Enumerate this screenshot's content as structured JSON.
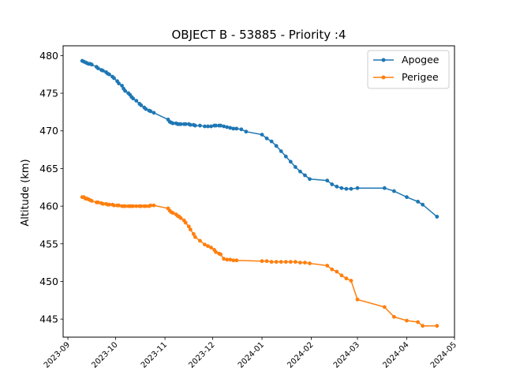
{
  "chart_data": {
    "type": "line",
    "title": "OBJECT B - 53885 - Priority :4",
    "xlabel": "",
    "ylabel": "Altitude (km)",
    "xlim": [
      "2023-08-29",
      "2024-05-01"
    ],
    "ylim": [
      442.6,
      481.3
    ],
    "x_ticks": [
      "2023-09-01",
      "2023-10-01",
      "2023-11-01",
      "2023-12-01",
      "2024-01-01",
      "2024-02-01",
      "2024-03-01",
      "2024-04-01",
      "2024-05-01"
    ],
    "x_tick_labels": [
      "2023-09",
      "2023-10",
      "2023-11",
      "2023-12",
      "2024-01",
      "2024-02",
      "2024-03",
      "2024-04",
      "2024-05"
    ],
    "y_ticks": [
      445,
      450,
      455,
      460,
      465,
      470,
      475,
      480
    ],
    "y_tick_labels": [
      "445",
      "450",
      "455",
      "460",
      "465",
      "470",
      "475",
      "480"
    ],
    "legend": {
      "placement": "top-right",
      "entries": [
        "Apogee",
        "Perigee"
      ]
    },
    "grid": false,
    "series": [
      {
        "name": "Apogee",
        "color": "#1f77b4",
        "x": [
          "2023-09-10",
          "2023-09-11",
          "2023-09-12",
          "2023-09-13",
          "2023-09-14",
          "2023-09-15",
          "2023-09-16",
          "2023-09-19",
          "2023-09-20",
          "2023-09-22",
          "2023-09-23",
          "2023-09-25",
          "2023-09-26",
          "2023-09-27",
          "2023-09-29",
          "2023-09-30",
          "2023-10-02",
          "2023-10-03",
          "2023-10-05",
          "2023-10-06",
          "2023-10-07",
          "2023-10-09",
          "2023-10-10",
          "2023-10-11",
          "2023-10-12",
          "2023-10-14",
          "2023-10-16",
          "2023-10-17",
          "2023-10-19",
          "2023-10-20",
          "2023-10-22",
          "2023-10-23",
          "2023-10-25",
          "2023-11-03",
          "2023-11-04",
          "2023-11-05",
          "2023-11-06",
          "2023-11-08",
          "2023-11-09",
          "2023-11-10",
          "2023-11-11",
          "2023-11-13",
          "2023-11-14",
          "2023-11-16",
          "2023-11-17",
          "2023-11-19",
          "2023-11-20",
          "2023-11-23",
          "2023-11-26",
          "2023-11-28",
          "2023-11-30",
          "2023-12-02",
          "2023-12-03",
          "2023-12-05",
          "2023-12-06",
          "2023-12-08",
          "2023-12-10",
          "2023-12-12",
          "2023-12-14",
          "2023-12-16",
          "2023-12-19",
          "2023-12-22",
          "2024-01-01",
          "2024-01-04",
          "2024-01-07",
          "2024-01-10",
          "2024-01-13",
          "2024-01-16",
          "2024-01-19",
          "2024-01-22",
          "2024-01-25",
          "2024-01-28",
          "2024-01-31",
          "2024-02-11",
          "2024-02-14",
          "2024-02-17",
          "2024-02-20",
          "2024-02-23",
          "2024-02-26",
          "2024-03-01",
          "2024-03-18",
          "2024-03-24",
          "2024-04-01",
          "2024-04-08",
          "2024-04-11",
          "2024-04-20"
        ],
        "y": [
          479.3,
          479.2,
          479.1,
          479.0,
          478.9,
          478.9,
          478.8,
          478.5,
          478.3,
          478.1,
          478.0,
          477.8,
          477.6,
          477.5,
          477.2,
          477.0,
          476.6,
          476.3,
          476.0,
          475.6,
          475.3,
          475.0,
          474.8,
          474.5,
          474.3,
          474.0,
          473.6,
          473.4,
          473.1,
          472.9,
          472.7,
          472.6,
          472.4,
          471.5,
          471.2,
          471.1,
          471.0,
          471.0,
          470.9,
          470.9,
          470.9,
          470.9,
          470.9,
          470.9,
          470.8,
          470.8,
          470.7,
          470.7,
          470.6,
          470.6,
          470.6,
          470.7,
          470.7,
          470.7,
          470.7,
          470.6,
          470.5,
          470.4,
          470.3,
          470.3,
          470.2,
          469.9,
          469.5,
          469.0,
          468.6,
          468.0,
          467.3,
          466.6,
          465.9,
          465.2,
          464.6,
          464.1,
          463.6,
          463.4,
          462.9,
          462.6,
          462.4,
          462.3,
          462.3,
          462.4,
          462.4,
          462.0,
          461.2,
          460.6,
          460.2,
          458.6
        ]
      },
      {
        "name": "Perigee",
        "color": "#ff7f0e",
        "x": [
          "2023-09-10",
          "2023-09-11",
          "2023-09-12",
          "2023-09-13",
          "2023-09-14",
          "2023-09-15",
          "2023-09-16",
          "2023-09-19",
          "2023-09-20",
          "2023-09-22",
          "2023-09-23",
          "2023-09-25",
          "2023-09-26",
          "2023-09-27",
          "2023-09-29",
          "2023-09-30",
          "2023-10-02",
          "2023-10-03",
          "2023-10-05",
          "2023-10-06",
          "2023-10-07",
          "2023-10-09",
          "2023-10-10",
          "2023-10-11",
          "2023-10-12",
          "2023-10-14",
          "2023-10-16",
          "2023-10-17",
          "2023-10-19",
          "2023-10-20",
          "2023-10-22",
          "2023-10-23",
          "2023-10-25",
          "2023-11-03",
          "2023-11-04",
          "2023-11-05",
          "2023-11-06",
          "2023-11-08",
          "2023-11-09",
          "2023-11-10",
          "2023-11-11",
          "2023-11-13",
          "2023-11-14",
          "2023-11-16",
          "2023-11-17",
          "2023-11-19",
          "2023-11-20",
          "2023-11-23",
          "2023-11-26",
          "2023-11-28",
          "2023-11-30",
          "2023-12-02",
          "2023-12-03",
          "2023-12-05",
          "2023-12-06",
          "2023-12-08",
          "2023-12-10",
          "2023-12-12",
          "2023-12-14",
          "2023-12-16",
          "2024-01-01",
          "2024-01-04",
          "2024-01-07",
          "2024-01-10",
          "2024-01-13",
          "2024-01-16",
          "2024-01-19",
          "2024-01-22",
          "2024-01-25",
          "2024-01-28",
          "2024-01-31",
          "2024-02-11",
          "2024-02-14",
          "2024-02-17",
          "2024-02-20",
          "2024-02-23",
          "2024-02-26",
          "2024-03-01",
          "2024-03-18",
          "2024-03-24",
          "2024-04-01",
          "2024-04-08",
          "2024-04-11",
          "2024-04-20"
        ],
        "y": [
          461.2,
          461.2,
          461.0,
          461.0,
          460.9,
          460.8,
          460.7,
          460.5,
          460.5,
          460.4,
          460.3,
          460.3,
          460.2,
          460.2,
          460.2,
          460.1,
          460.1,
          460.1,
          460.0,
          460.0,
          460.0,
          460.0,
          460.0,
          460.0,
          460.0,
          460.0,
          460.0,
          460.0,
          460.0,
          460.0,
          460.0,
          460.1,
          460.1,
          459.7,
          459.4,
          459.2,
          459.1,
          458.9,
          458.7,
          458.6,
          458.4,
          458.1,
          457.8,
          457.3,
          456.9,
          456.3,
          455.9,
          455.4,
          454.9,
          454.7,
          454.5,
          454.2,
          453.9,
          453.7,
          453.6,
          453.0,
          452.9,
          452.9,
          452.8,
          452.8,
          452.7,
          452.7,
          452.6,
          452.6,
          452.6,
          452.6,
          452.6,
          452.6,
          452.5,
          452.5,
          452.4,
          452.1,
          451.6,
          451.3,
          450.8,
          450.4,
          450.1,
          447.6,
          446.6,
          445.3,
          444.8,
          444.6,
          444.1,
          444.1
        ]
      }
    ]
  }
}
